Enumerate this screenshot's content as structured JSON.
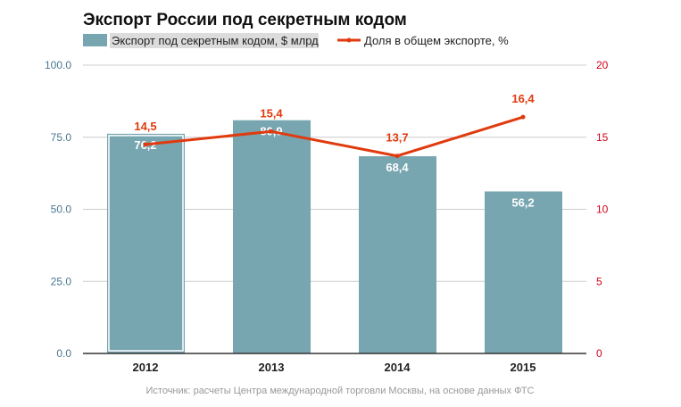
{
  "chart_data": {
    "type": "bar+line",
    "title": "Экспорт России под секретным кодом",
    "categories": [
      "2012",
      "2013",
      "2014",
      "2015"
    ],
    "series": [
      {
        "name": "Экспорт под секретным кодом, $ млрд",
        "type": "bar",
        "axis": "left",
        "values": [
          76.2,
          80.9,
          68.4,
          56.2
        ],
        "labels": [
          "76,2",
          "80,9",
          "68,4",
          "56,2"
        ],
        "color": "#77a5b0"
      },
      {
        "name": "Доля в общем экспорте, %",
        "type": "line",
        "axis": "right",
        "values": [
          14.5,
          15.4,
          13.7,
          16.4
        ],
        "labels": [
          "14,5",
          "15,4",
          "13,7",
          "16,4"
        ],
        "color": "#e03a0e"
      }
    ],
    "left_axis": {
      "range": [
        0,
        100
      ],
      "ticks": [
        "0.0",
        "25.0",
        "50.0",
        "75.0",
        "100.0"
      ],
      "color": "#4a7890"
    },
    "right_axis": {
      "range": [
        0,
        20
      ],
      "ticks": [
        "0",
        "5",
        "10",
        "15",
        "20"
      ],
      "color": "#d0021b"
    },
    "grid": true,
    "legend_position": "top-left",
    "source": "Источник: расчеты Центра международной торговли Москвы, на основе данных ФТС"
  }
}
